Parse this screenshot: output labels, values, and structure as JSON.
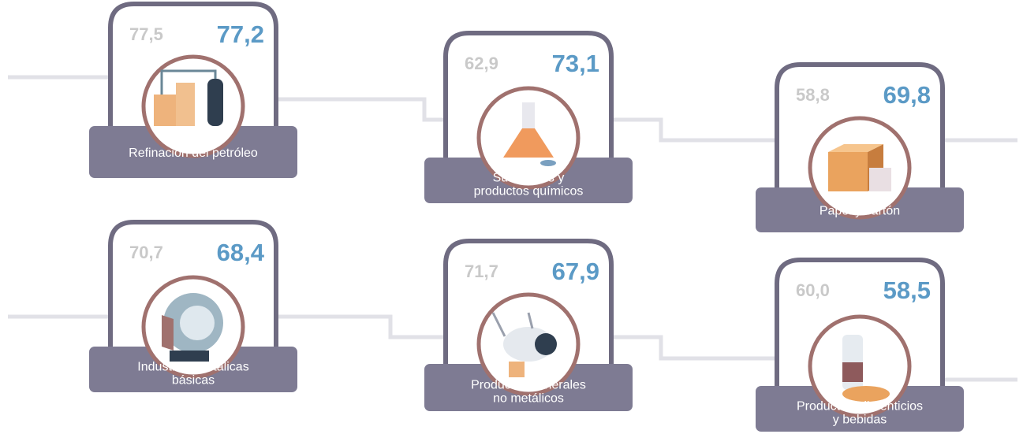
{
  "cards": [
    {
      "previous": "77,5",
      "current": "77,2",
      "label_lines": [
        "Refinación del petróleo"
      ]
    },
    {
      "previous": "62,9",
      "current": "73,1",
      "label_lines": [
        "Sustancias y",
        "productos químicos"
      ]
    },
    {
      "previous": "58,8",
      "current": "69,8",
      "label_lines": [
        "Papel y cartón"
      ]
    },
    {
      "previous": "70,7",
      "current": "68,4",
      "label_lines": [
        "Industrias metálicas",
        "básicas"
      ]
    },
    {
      "previous": "71,7",
      "current": "67,9",
      "label_lines": [
        "Productos minerales",
        "no metálicos"
      ]
    },
    {
      "previous": "60,0",
      "current": "58,5",
      "label_lines": [
        "Productos alimenticios",
        "y bebidas"
      ]
    }
  ]
}
